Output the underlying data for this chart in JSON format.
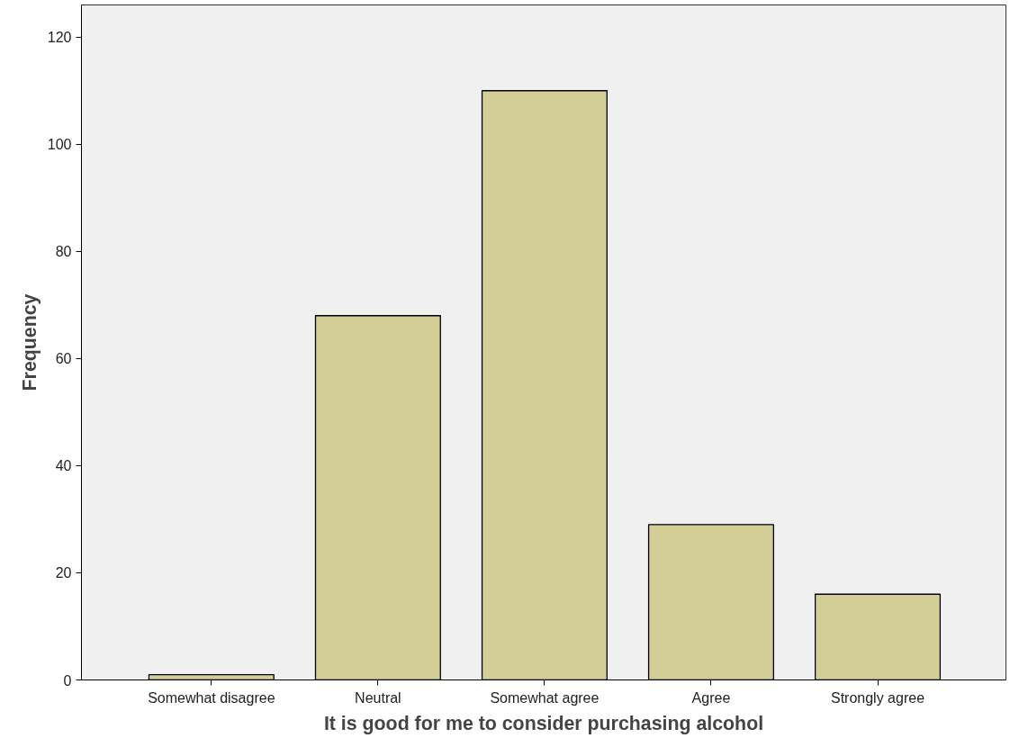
{
  "chart_data": {
    "type": "bar",
    "xlabel": "It is good for me to consider purchasing alcohol",
    "ylabel": "Frequency",
    "categories": [
      "Somewhat disagree",
      "Neutral",
      "Somewhat agree",
      "Agree",
      "Strongly agree"
    ],
    "values": [
      1,
      68,
      110,
      29,
      16
    ],
    "color": "#d3ce97",
    "ylim": [
      0,
      126
    ],
    "yticks": [
      0,
      20,
      40,
      60,
      80,
      100,
      120
    ],
    "grid": false
  }
}
